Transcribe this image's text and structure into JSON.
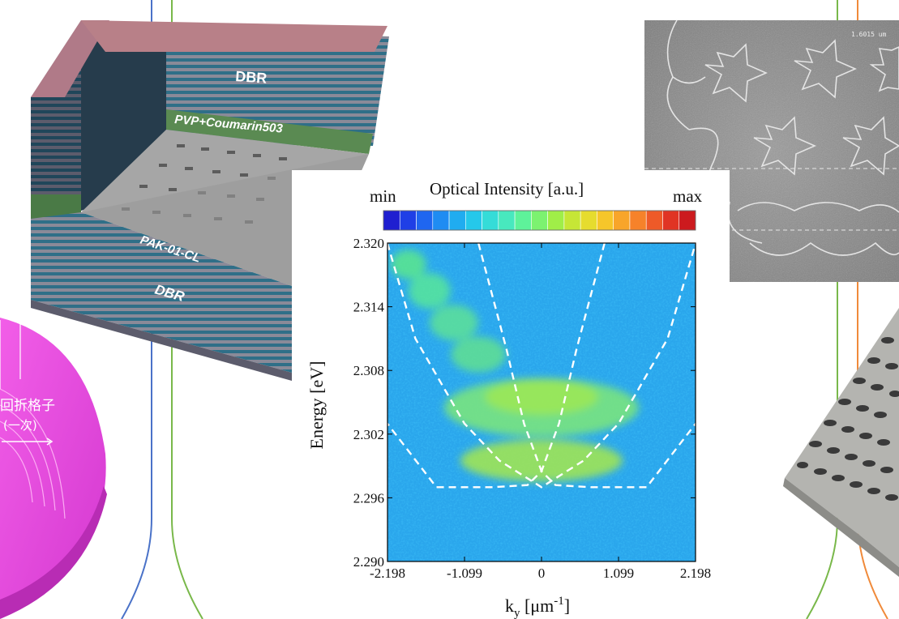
{
  "figure_labels": {
    "dbr_top": "DBR",
    "dbr_bottom": "DBR",
    "pvp_layer": "PVP+Coumarin503",
    "pak_layer": "PAK-01-CL",
    "grating_label_1": "回折格子",
    "grating_label_2": "(一次)",
    "sem_scale": "1.6015 um"
  },
  "colorbar": {
    "title": "Optical Intensity [a.u.]",
    "min_label": "min",
    "max_label": "max",
    "colors": [
      "#1f1fd0",
      "#1f3fe6",
      "#1f66f0",
      "#1f8cf2",
      "#20acf0",
      "#25c8ea",
      "#35dcd8",
      "#48e8be",
      "#5ef29a",
      "#7cf270",
      "#a0ee48",
      "#c6e636",
      "#e6dc2e",
      "#f6c62a",
      "#f8a52a",
      "#f6822a",
      "#ee5a28",
      "#e03424",
      "#cc1a1e"
    ]
  },
  "chart_data": {
    "type": "heatmap",
    "title": "Optical Intensity [a.u.]",
    "xlabel": "k",
    "xlabel_sub": "y",
    "xlabel_unit_open": " [μm",
    "xlabel_sup": "-1",
    "xlabel_unit_close": "]",
    "ylabel": "Energy [eV]",
    "xlim": [
      -2.198,
      2.198
    ],
    "ylim": [
      2.29,
      2.32
    ],
    "x_ticks": [
      -2.198,
      -1.099,
      0,
      1.099,
      2.198
    ],
    "x_tick_labels": [
      "-2.198",
      "-1.099",
      "0",
      "1.099",
      "2.198"
    ],
    "y_ticks": [
      2.29,
      2.296,
      2.302,
      2.308,
      2.314,
      2.32
    ],
    "y_tick_labels": [
      "2.290",
      "2.296",
      "2.302",
      "2.308",
      "2.314",
      "2.320"
    ],
    "background_level": "cyan-blue",
    "bright_modes": [
      {
        "k": 0,
        "energy": 2.2974,
        "intensity": "max"
      },
      {
        "k": -0.35,
        "energy": 2.3002,
        "intensity": "high"
      },
      {
        "k": 0.35,
        "energy": 2.3002,
        "intensity": "high"
      },
      {
        "k": -0.5,
        "energy": 2.3023,
        "intensity": "medium-high"
      },
      {
        "k": 0.5,
        "energy": 2.3023,
        "intensity": "medium-high"
      },
      {
        "k": -0.2,
        "energy": 2.304,
        "intensity": "medium"
      },
      {
        "k": 0.2,
        "energy": 2.304,
        "intensity": "medium"
      }
    ],
    "dispersion_curves": [
      {
        "name": "",
        "style": "dashed",
        "points": [
          [
            -0.9,
            2.32
          ],
          [
            -0.5,
            2.31
          ],
          [
            -0.25,
            2.303
          ],
          [
            0.0,
            2.2985
          ],
          [
            0.2,
            2.2972
          ],
          [
            0.7,
            2.297
          ],
          [
            1.5,
            2.297
          ],
          [
            2.2,
            2.303
          ]
        ]
      },
      {
        "name": "",
        "style": "dashed",
        "points": [
          [
            0.9,
            2.32
          ],
          [
            0.5,
            2.31
          ],
          [
            0.25,
            2.303
          ],
          [
            0.0,
            2.2985
          ],
          [
            -0.2,
            2.2972
          ],
          [
            -0.7,
            2.297
          ],
          [
            -1.5,
            2.297
          ],
          [
            -2.2,
            2.303
          ]
        ]
      },
      {
        "name": "",
        "style": "dashed",
        "points": [
          [
            -2.2,
            2.32
          ],
          [
            -1.8,
            2.311
          ],
          [
            -1.1,
            2.303
          ],
          [
            -0.6,
            2.2995
          ],
          [
            0,
            2.297
          ],
          [
            0.6,
            2.2995
          ],
          [
            1.1,
            2.303
          ],
          [
            1.8,
            2.311
          ],
          [
            2.2,
            2.32
          ]
        ]
      }
    ]
  }
}
